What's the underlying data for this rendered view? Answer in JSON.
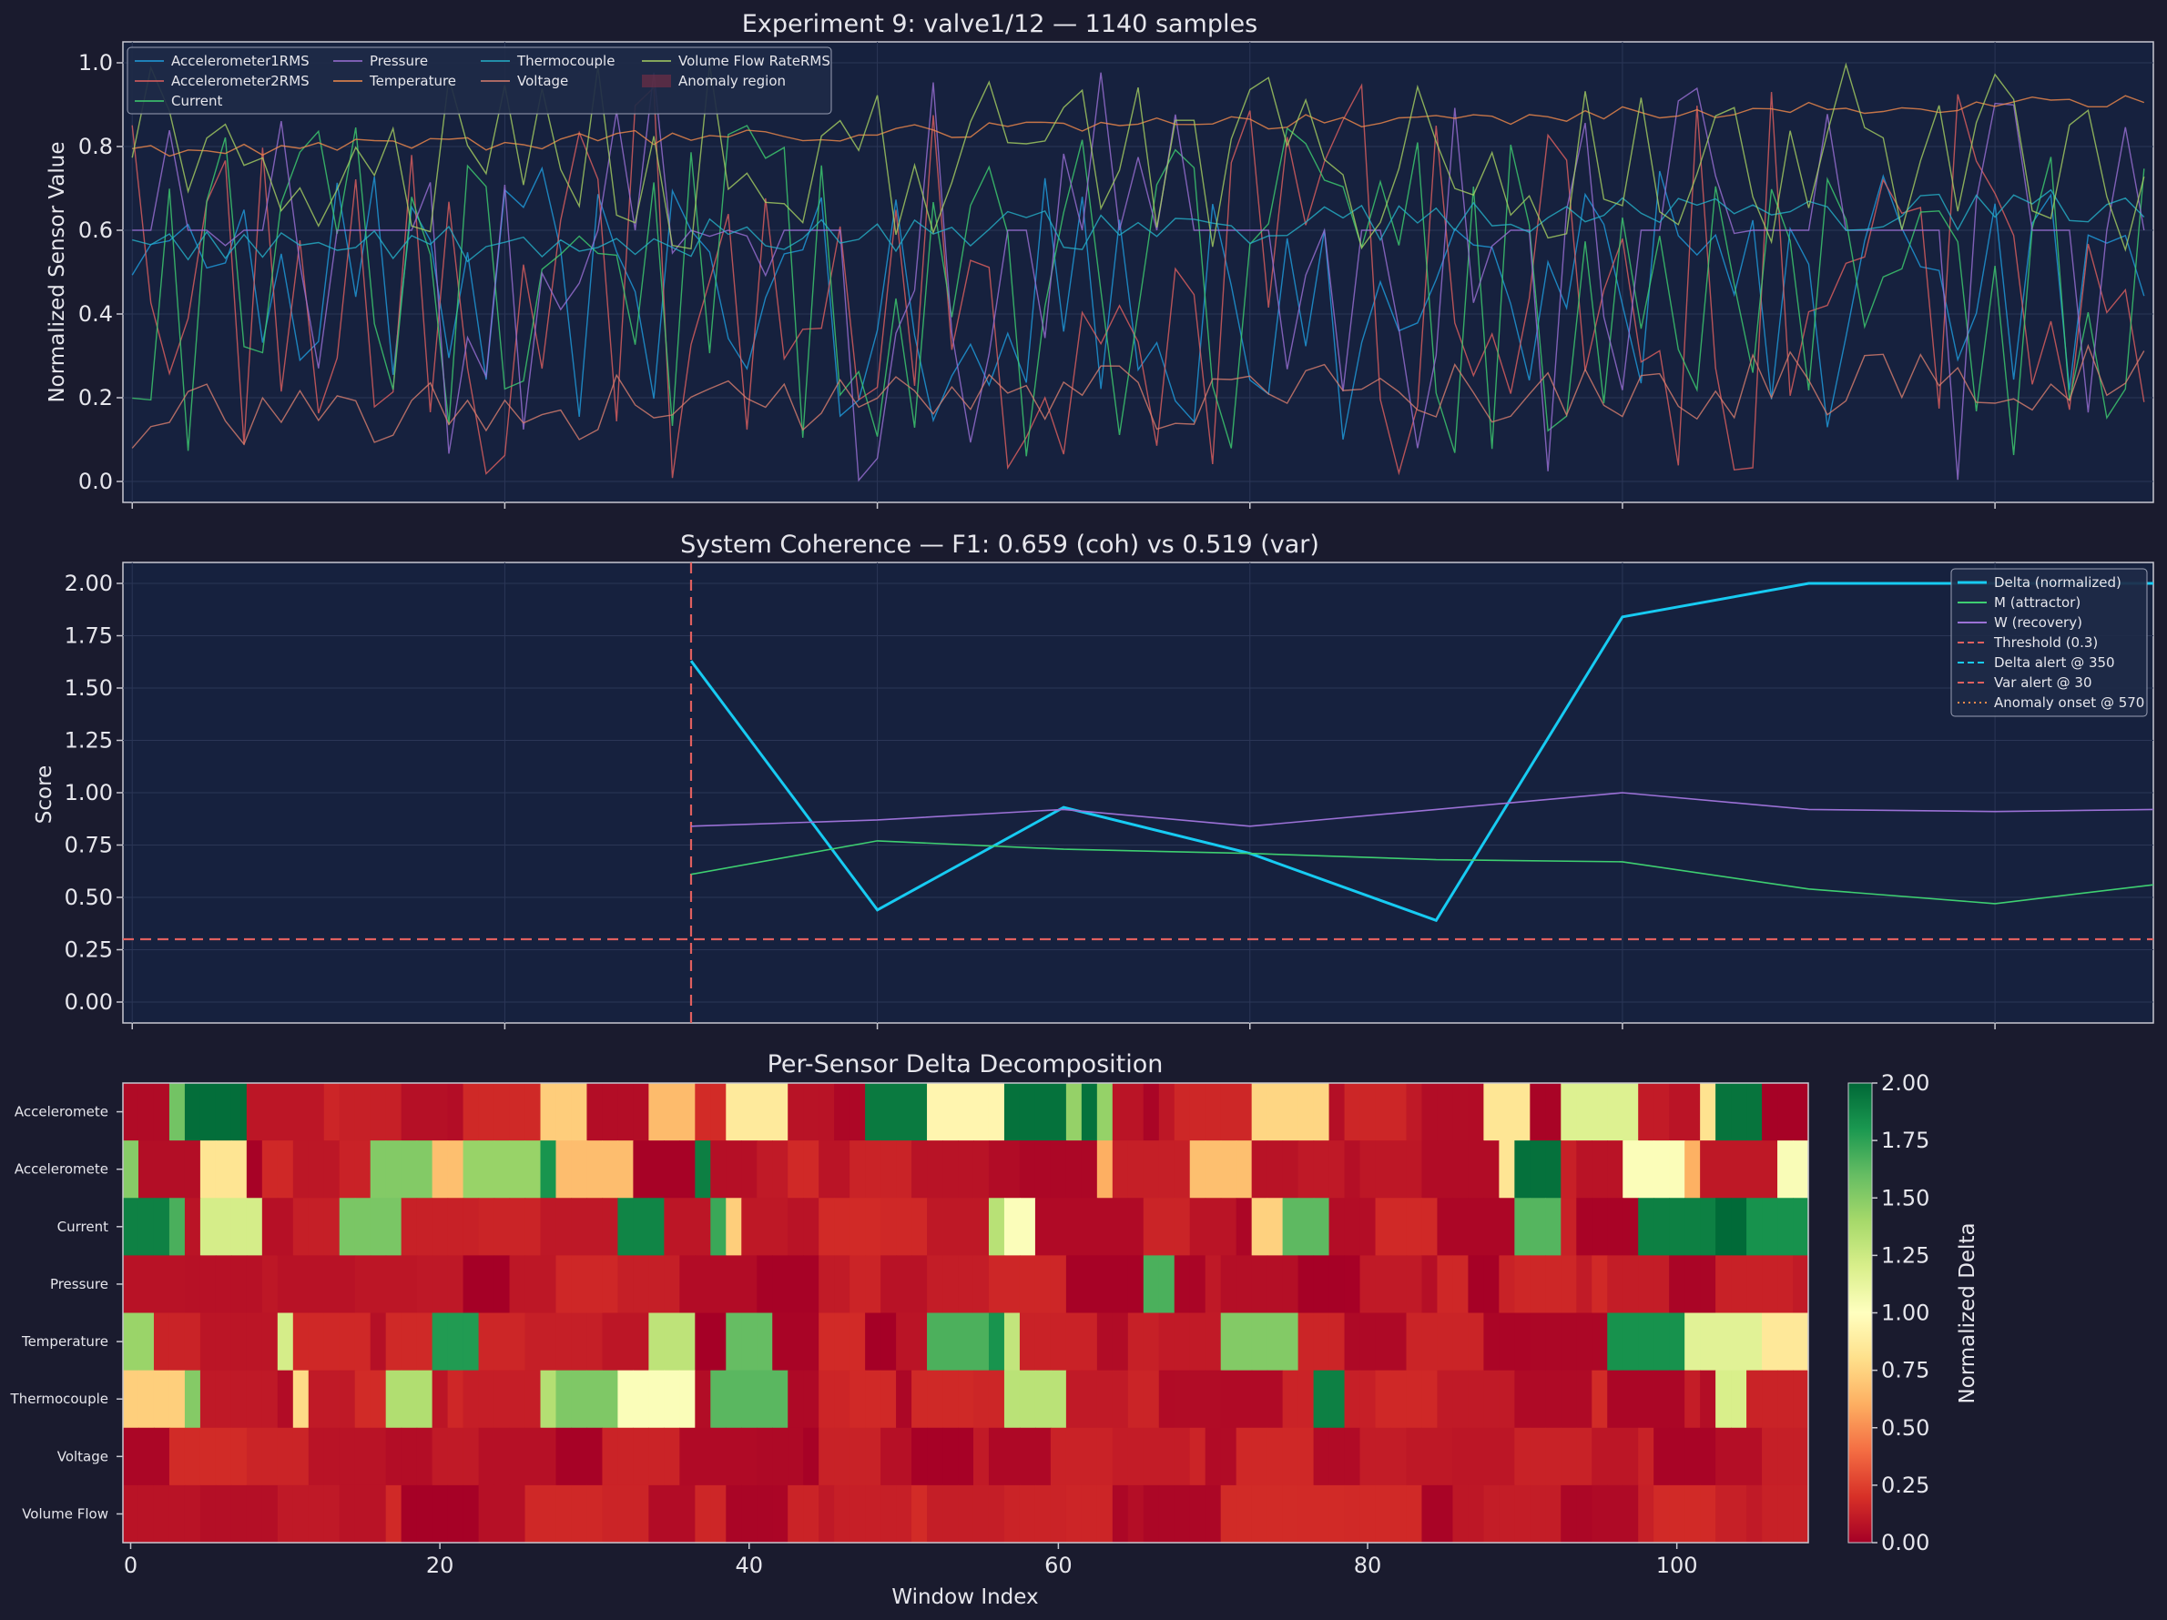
{
  "figure": {
    "background": "#1a1b2e",
    "panel_background": "#16213e",
    "text_color": "#e6e6ec"
  },
  "chart_data": [
    {
      "type": "line",
      "title": "Experiment 9: valve1/12 — 1140 samples",
      "ylabel": "Normalized Sensor Value",
      "xlabel": "",
      "ylim": [
        -0.05,
        1.05
      ],
      "xlim": [
        -0.5,
        108.5
      ],
      "yticks": [
        "0.0",
        "0.2",
        "0.4",
        "0.6",
        "0.8",
        "1.0"
      ],
      "grid": true,
      "legend_position": "upper-left",
      "points": 109,
      "legend": [
        {
          "name": "Accelerometer1RMS",
          "color": "#1f9ede"
        },
        {
          "name": "Accelerometer2RMS",
          "color": "#e0605f"
        },
        {
          "name": "Current",
          "color": "#3ecf71"
        },
        {
          "name": "Pressure",
          "color": "#9b71d6"
        },
        {
          "name": "Temperature",
          "color": "#f08a4b"
        },
        {
          "name": "Thermocouple",
          "color": "#25b0c8"
        },
        {
          "name": "Voltage",
          "color": "#d87e6e"
        },
        {
          "name": "Volume Flow RateRMS",
          "color": "#a6cf62"
        },
        {
          "name": "Anomaly region",
          "color": "#7d2f45"
        }
      ],
      "series": [
        {
          "name": "Accelerometer1RMS",
          "color": "#1f9ede",
          "style": "jagged",
          "low": 0.1,
          "high": 0.75,
          "seed": 3
        },
        {
          "name": "Accelerometer2RMS",
          "color": "#e0605f",
          "style": "jagged",
          "low": 0.0,
          "high": 0.95,
          "seed": 7
        },
        {
          "name": "Current",
          "color": "#3ecf71",
          "style": "jagged",
          "low": 0.05,
          "high": 0.85,
          "seed": 11
        },
        {
          "name": "Pressure",
          "color": "#9b71d6",
          "style": "steps",
          "base": 0.6,
          "low": 0.0,
          "high": 1.0,
          "seed": 13
        },
        {
          "name": "Temperature",
          "color": "#f08a4b",
          "style": "smooth",
          "start": 0.79,
          "end": 0.91,
          "noise": 0.02,
          "seed": 17
        },
        {
          "name": "Thermocouple",
          "color": "#25b0c8",
          "style": "smooth",
          "start": 0.55,
          "end": 0.66,
          "noise": 0.05,
          "seed": 19
        },
        {
          "name": "Voltage",
          "color": "#d87e6e",
          "style": "drift",
          "start": 0.15,
          "end": 0.25,
          "noise": 0.08,
          "seed": 23
        },
        {
          "name": "Volume Flow RateRMS",
          "color": "#a6cf62",
          "style": "jagged",
          "low": 0.55,
          "high": 1.0,
          "seed": 29
        }
      ]
    },
    {
      "type": "line",
      "title": "System Coherence — F1: 0.659 (coh) vs 0.519 (var)",
      "ylabel": "Score",
      "xlabel": "",
      "ylim": [
        -0.1,
        2.1
      ],
      "xlim": [
        -0.5,
        108.5
      ],
      "yticks": [
        "0.00",
        "0.25",
        "0.50",
        "0.75",
        "1.00",
        "1.25",
        "1.50",
        "1.75",
        "2.00"
      ],
      "grid": true,
      "legend_position": "upper-right",
      "series": [
        {
          "name": "Delta (normalized)",
          "color": "#17cbf2",
          "x": [
            30,
            40,
            50,
            60,
            70,
            80,
            90,
            100,
            108.5
          ],
          "values": [
            1.63,
            0.44,
            0.93,
            0.71,
            0.39,
            1.84,
            2.0,
            2.0,
            2.0
          ]
        },
        {
          "name": "M (attractor)",
          "color": "#3ecf71",
          "x": [
            30,
            40,
            50,
            60,
            70,
            80,
            90,
            100,
            108.5
          ],
          "values": [
            0.61,
            0.77,
            0.73,
            0.71,
            0.68,
            0.67,
            0.54,
            0.47,
            0.56
          ]
        },
        {
          "name": "W (recovery)",
          "color": "#9b71d6",
          "x": [
            30,
            40,
            50,
            60,
            70,
            80,
            90,
            100,
            108.5
          ],
          "values": [
            0.84,
            0.87,
            0.92,
            0.84,
            0.92,
            1.0,
            0.92,
            0.91,
            0.92
          ]
        }
      ],
      "reference_lines": [
        {
          "name": "Threshold (0.3)",
          "orientation": "horizontal",
          "value": 0.3,
          "color": "#e0605f",
          "dash": "dashed"
        },
        {
          "name": "Delta alert @ 350",
          "orientation": "vertical",
          "value": 350,
          "color": "#17cbf2",
          "dash": "dashed",
          "in_view": false
        },
        {
          "name": "Var alert @ 30",
          "orientation": "vertical",
          "value": 30,
          "color": "#e0605f",
          "dash": "dashed",
          "in_view": true
        },
        {
          "name": "Anomaly onset @ 570",
          "orientation": "vertical",
          "value": 570,
          "color": "#f08a4b",
          "dash": "dotted",
          "in_view": false
        }
      ],
      "legend": [
        {
          "name": "Delta (normalized)",
          "color": "#17cbf2",
          "dash": "solid"
        },
        {
          "name": "M (attractor)",
          "color": "#3ecf71",
          "dash": "solid"
        },
        {
          "name": "W (recovery)",
          "color": "#9b71d6",
          "dash": "solid"
        },
        {
          "name": "Threshold (0.3)",
          "color": "#e0605f",
          "dash": "dashed"
        },
        {
          "name": "Delta alert @ 350",
          "color": "#17cbf2",
          "dash": "dashed"
        },
        {
          "name": "Var alert @ 30",
          "color": "#e0605f",
          "dash": "dashed"
        },
        {
          "name": "Anomaly onset @ 570",
          "color": "#f08a4b",
          "dash": "dotted"
        }
      ]
    },
    {
      "type": "heatmap",
      "title": "Per-Sensor Delta Decomposition",
      "xlabel": "Window Index",
      "ylabel": "",
      "xlim": [
        -0.5,
        108.5
      ],
      "xticks": [
        "0",
        "20",
        "40",
        "60",
        "80",
        "100"
      ],
      "rows": [
        "Acceleromete",
        "Acceleromete",
        "Current",
        "Pressure",
        "Temperature",
        "Thermocouple",
        "Voltage",
        "Volume Flow"
      ],
      "columns": 109,
      "colormap": "RdYlGn",
      "vmin": 0.0,
      "vmax": 2.0,
      "colorbar_label": "Normalized Delta",
      "colorbar_ticks": [
        "0.00",
        "0.25",
        "0.50",
        "0.75",
        "1.00",
        "1.25",
        "1.50",
        "1.75",
        "2.00"
      ],
      "generated": true,
      "seed": 42
    }
  ]
}
